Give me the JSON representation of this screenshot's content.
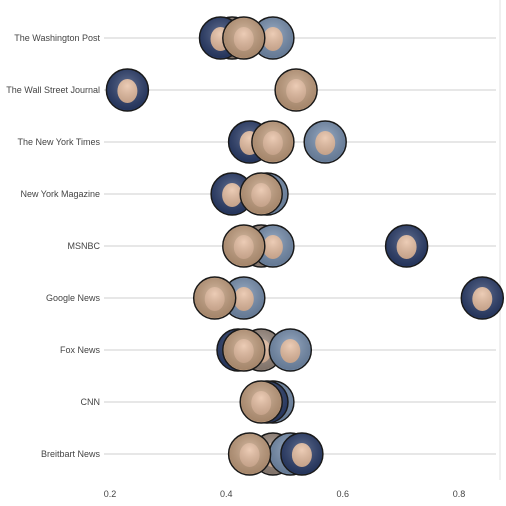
{
  "chart_data": {
    "type": "scatter",
    "title": "",
    "xlabel": "",
    "ylabel": "",
    "xlim": [
      0.2,
      0.8
    ],
    "x_ticks": [
      "0.2",
      "0.4",
      "0.6",
      "0.8"
    ],
    "grid": "horizontal lines per outlet",
    "legend": "none",
    "categories": [
      "The Washington Post",
      "The Wall Street Journal",
      "The New York Times",
      "New York Magazine",
      "MSNBC",
      "Google News",
      "Fox News",
      "CNN",
      "Breitbart News"
    ],
    "series": [
      {
        "marker": "warren-photo",
        "values": [
          0.43,
          0.52,
          0.48,
          0.46,
          0.43,
          0.38,
          0.43,
          0.46,
          0.44
        ]
      },
      {
        "marker": "harris-photo",
        "values": [
          0.39,
          0.23,
          0.44,
          0.41,
          0.71,
          0.84,
          0.42,
          0.47,
          0.53
        ]
      },
      {
        "marker": "biden-photo",
        "values": [
          0.48,
          null,
          0.57,
          0.47,
          0.48,
          0.43,
          0.51,
          0.48,
          0.51
        ]
      },
      {
        "marker": "sanders-photo",
        "values": [
          0.41,
          null,
          null,
          null,
          0.46,
          null,
          0.46,
          null,
          0.48
        ]
      }
    ],
    "marker_colors": {
      "warren-photo": "#c9a382",
      "harris-photo": "#2c3f6e",
      "biden-photo": "#7a93b4",
      "sanders-photo": "#9c8b80"
    }
  }
}
